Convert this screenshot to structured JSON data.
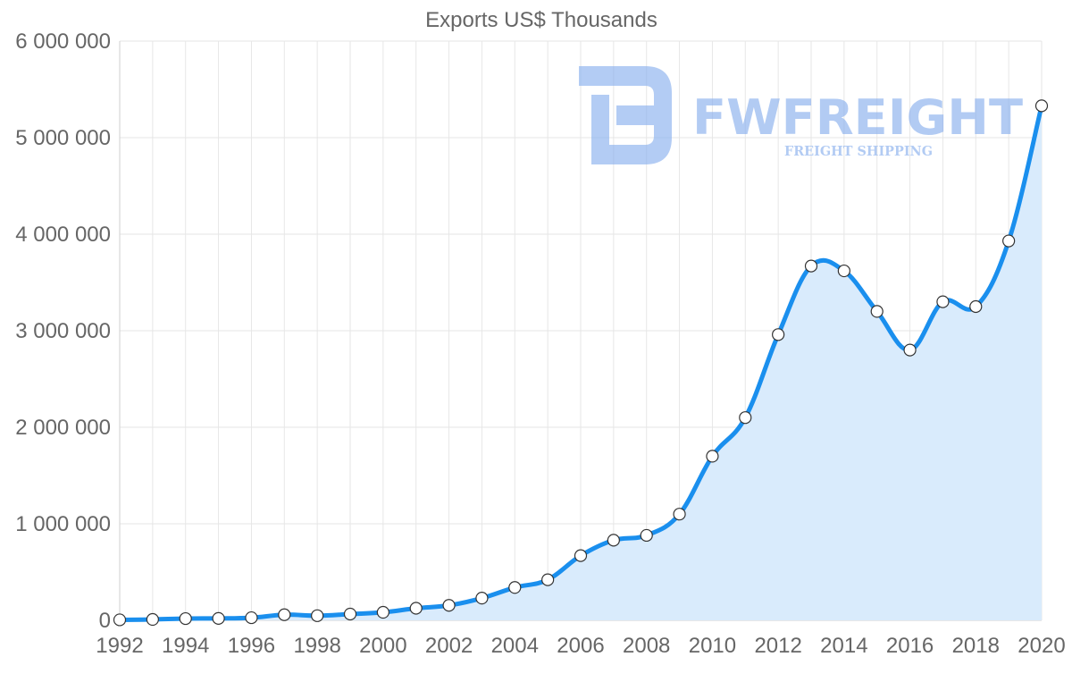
{
  "watermark": {
    "brand": "FWFREIGHT",
    "tagline": "FREIGHT SHIPPING",
    "color": "#8ab0ee",
    "icon": "fwfreight-logo-icon"
  },
  "chart_data": {
    "type": "area",
    "title": "Exports US$ Thousands",
    "xlabel": "",
    "ylabel": "",
    "ylim": [
      0,
      6000000
    ],
    "yticks": [
      0,
      1000000,
      2000000,
      3000000,
      4000000,
      5000000,
      6000000
    ],
    "ytick_labels": [
      "0",
      "1 000 000",
      "2 000 000",
      "3 000 000",
      "4 000 000",
      "5 000 000",
      "6 000 000"
    ],
    "xlim": [
      1992,
      2020
    ],
    "xtick_labels": [
      "1992",
      "1994",
      "1996",
      "1998",
      "2000",
      "2002",
      "2004",
      "2006",
      "2008",
      "2010",
      "2012",
      "2014",
      "2016",
      "2018",
      "2020"
    ],
    "grid": true,
    "line_color": "#1a8fee",
    "fill_color": "#d9ebfc",
    "series": [
      {
        "name": "Exports US$ Thousands",
        "x": [
          1992,
          1993,
          1994,
          1995,
          1996,
          1997,
          1998,
          1999,
          2000,
          2001,
          2002,
          2003,
          2004,
          2005,
          2006,
          2007,
          2008,
          2009,
          2010,
          2011,
          2012,
          2013,
          2014,
          2015,
          2016,
          2017,
          2018,
          2019,
          2020
        ],
        "values": [
          5000,
          9000,
          18000,
          20000,
          27000,
          58000,
          48000,
          65000,
          83000,
          125000,
          155000,
          230000,
          340000,
          420000,
          670000,
          830000,
          880000,
          1100000,
          1700000,
          2100000,
          2960000,
          3670000,
          3620000,
          3200000,
          2800000,
          3300000,
          3250000,
          3930000,
          5330000
        ]
      }
    ]
  }
}
